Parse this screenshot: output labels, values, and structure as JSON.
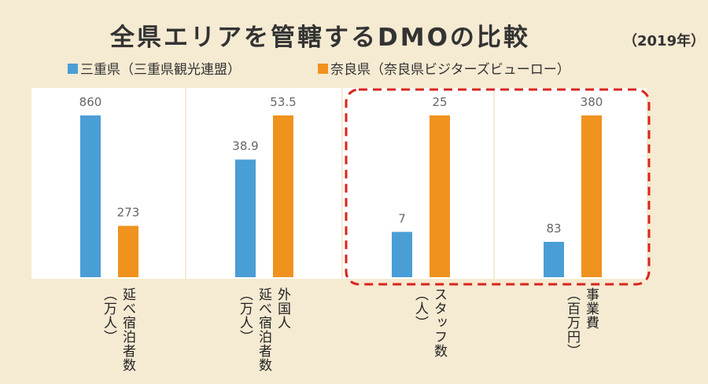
{
  "title": "全県エリアを管轄するDMOの比較",
  "subtitle": "（2019年）",
  "chart_data": [
    {
      "type": "bar",
      "xlabel": [
        "延べ宿泊者数",
        "（万人）"
      ],
      "ylim": [
        0,
        860
      ],
      "series": [
        {
          "name": "三重県（三重県観光連盟）",
          "color": "#4a9ed6",
          "values": [
            860
          ]
        },
        {
          "name": "奈良県（奈良県ビジターズビューロー）",
          "color": "#f0921e",
          "values": [
            273
          ]
        }
      ]
    },
    {
      "type": "bar",
      "xlabel": [
        "外国人",
        "延べ宿泊者数",
        "（万人）"
      ],
      "ylim": [
        0,
        53.5
      ],
      "series": [
        {
          "name": "三重県（三重県観光連盟）",
          "color": "#4a9ed6",
          "values": [
            38.9
          ]
        },
        {
          "name": "奈良県（奈良県ビジターズビューロー）",
          "color": "#f0921e",
          "values": [
            53.5
          ]
        }
      ]
    },
    {
      "type": "bar",
      "xlabel": [
        "スタッフ数",
        "（人）"
      ],
      "ylim": [
        0,
        25
      ],
      "series": [
        {
          "name": "三重県（三重県観光連盟）",
          "color": "#4a9ed6",
          "values": [
            7
          ]
        },
        {
          "name": "奈良県（奈良県ビジターズビューロー）",
          "color": "#f0921e",
          "values": [
            25
          ]
        }
      ]
    },
    {
      "type": "bar",
      "xlabel": [
        "事業費",
        "（百万円）"
      ],
      "ylim": [
        0,
        380
      ],
      "series": [
        {
          "name": "三重県（三重県観光連盟）",
          "color": "#4a9ed6",
          "values": [
            83
          ]
        },
        {
          "name": "奈良県（奈良県ビジターズビューロー）",
          "color": "#f0921e",
          "values": [
            380
          ]
        }
      ]
    }
  ]
}
